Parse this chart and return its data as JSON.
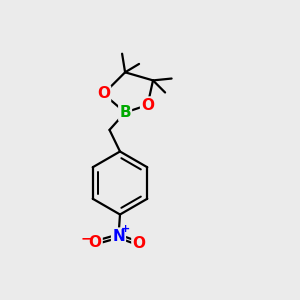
{
  "background_color": "#ebebeb",
  "bond_color": "#000000",
  "bond_width": 1.6,
  "atom_colors": {
    "B": "#00aa00",
    "O": "#ff0000",
    "N": "#0000ff",
    "C": "#000000"
  },
  "font_size_atoms": 11,
  "dpi": 100,
  "figsize": [
    3.0,
    3.0
  ]
}
